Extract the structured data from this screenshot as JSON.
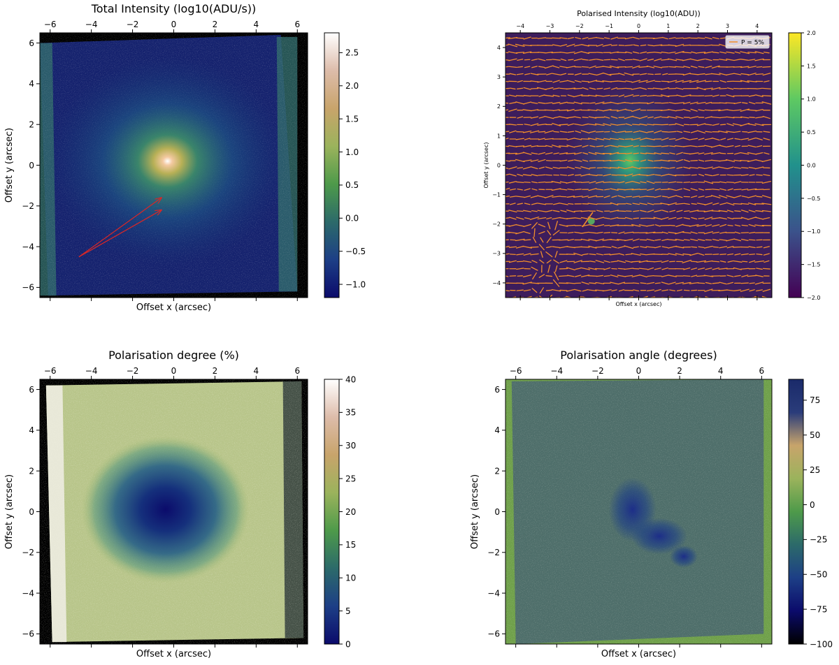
{
  "chart_data": [
    {
      "type": "heatmap",
      "title": "Total Intensity (log10(ADU/s))",
      "xlabel": "Offset x (arcsec)",
      "ylabel": "Offset y (arcsec)",
      "xlim": [
        -6.5,
        6.5
      ],
      "ylim": [
        -6.5,
        6.5
      ],
      "xticks": [
        -6,
        -4,
        -2,
        0,
        2,
        4,
        6
      ],
      "yticks": [
        -6,
        -4,
        -2,
        0,
        2,
        4,
        6
      ],
      "xtick_labels": [
        "−6",
        "−4",
        "−2",
        "0",
        "2",
        "4",
        "6"
      ],
      "ytick_labels": [
        "−6",
        "−4",
        "−2",
        "0",
        "2",
        "4",
        "6"
      ],
      "colorbar": {
        "range": [
          -1.2,
          2.8
        ],
        "ticks": [
          -1.0,
          -0.5,
          0.0,
          0.5,
          1.0,
          1.5,
          2.0,
          2.5
        ],
        "tick_labels": [
          "−1.0",
          "−0.5",
          "0.0",
          "0.5",
          "1.0",
          "1.5",
          "2.0",
          "2.5"
        ],
        "colors": [
          "#0b0b6b",
          "#1d3f86",
          "#2c6a6a",
          "#4e9a4a",
          "#9bb35c",
          "#c8a46b",
          "#ddbcaa",
          "#ffffff"
        ]
      },
      "annotations": [
        {
          "type": "arrow",
          "from": [
            -4.6,
            -4.5
          ],
          "to": [
            -0.6,
            -1.6
          ],
          "color": "#d62728"
        },
        {
          "type": "arrow",
          "from": [
            -4.6,
            -4.5
          ],
          "to": [
            -0.6,
            -2.2
          ],
          "color": "#d62728"
        }
      ]
    },
    {
      "type": "heatmap",
      "title": "Polarised Intensity (log10(ADU))",
      "xlabel": "Offset x (arcsec)",
      "ylabel": "Offset y (arcsec)",
      "xlim": [
        -4.5,
        4.5
      ],
      "ylim": [
        -4.5,
        4.5
      ],
      "xticks": [
        -4,
        -3,
        -2,
        -1,
        0,
        1,
        2,
        3,
        4
      ],
      "yticks": [
        -4,
        -3,
        -2,
        -1,
        0,
        1,
        2,
        3,
        4
      ],
      "xtick_labels": [
        "−4",
        "−3",
        "−2",
        "−1",
        "0",
        "1",
        "2",
        "3",
        "4"
      ],
      "ytick_labels": [
        "−4",
        "−3",
        "−2",
        "−1",
        "0",
        "1",
        "2",
        "3",
        "4"
      ],
      "colorbar": {
        "range": [
          -2.0,
          2.0
        ],
        "ticks": [
          -2.0,
          -1.5,
          -1.0,
          -0.5,
          0.0,
          0.5,
          1.0,
          1.5,
          2.0
        ],
        "tick_labels": [
          "−2.0",
          "−1.5",
          "−1.0",
          "−0.5",
          "0.0",
          "0.5",
          "1.0",
          "1.5",
          "2.0"
        ],
        "colors": [
          "#440154",
          "#3b528b",
          "#21918c",
          "#5ec962",
          "#fde725"
        ]
      },
      "legend": {
        "label": "P = 5%",
        "color": "#f28e2b",
        "position": "top-right"
      },
      "overlay": "polarisation vectors"
    },
    {
      "type": "heatmap",
      "title": "Polarisation degree (%)",
      "xlabel": "Offset x (arcsec)",
      "ylabel": "Offset y (arcsec)",
      "xlim": [
        -6.5,
        6.5
      ],
      "ylim": [
        -6.5,
        6.5
      ],
      "xticks": [
        -6,
        -4,
        -2,
        0,
        2,
        4,
        6
      ],
      "yticks": [
        -6,
        -4,
        -2,
        0,
        2,
        4,
        6
      ],
      "xtick_labels": [
        "−6",
        "−4",
        "−2",
        "0",
        "2",
        "4",
        "6"
      ],
      "ytick_labels": [
        "−6",
        "−4",
        "−2",
        "0",
        "2",
        "4",
        "6"
      ],
      "colorbar": {
        "range": [
          0,
          40
        ],
        "ticks": [
          0,
          5,
          10,
          15,
          20,
          25,
          30,
          35,
          40
        ],
        "tick_labels": [
          "0",
          "5",
          "10",
          "15",
          "20",
          "25",
          "30",
          "35",
          "40"
        ],
        "colors": [
          "#0b0b6b",
          "#1d3f86",
          "#2c6a6a",
          "#4e9a4a",
          "#9bb35c",
          "#c8a46b",
          "#ddbcaa",
          "#ffffff"
        ]
      }
    },
    {
      "type": "heatmap",
      "title": "Polarisation angle (degrees)",
      "xlabel": "Offset x (arcsec)",
      "ylabel": "Offset y (arcsec)",
      "xlim": [
        -6.5,
        6.5
      ],
      "ylim": [
        -6.5,
        6.5
      ],
      "xticks": [
        -6,
        -4,
        -2,
        0,
        2,
        4,
        6
      ],
      "yticks": [
        -6,
        -4,
        -2,
        0,
        2,
        4,
        6
      ],
      "xtick_labels": [
        "−6",
        "−4",
        "−2",
        "0",
        "2",
        "4",
        "6"
      ],
      "ytick_labels": [
        "−6",
        "−4",
        "−2",
        "0",
        "2",
        "4",
        "6"
      ],
      "colorbar": {
        "range": [
          -100,
          90
        ],
        "ticks": [
          -100,
          -75,
          -50,
          -25,
          0,
          25,
          50,
          75
        ],
        "tick_labels": [
          "−100",
          "−75",
          "−50",
          "−25",
          "0",
          "25",
          "50",
          "75"
        ],
        "colors": [
          "#000000",
          "#0b0b6b",
          "#1d3f86",
          "#2c6a6a",
          "#4e9a4a",
          "#9bb35c",
          "#c8a46b",
          "#2a3c7a",
          "#1a2a6a"
        ]
      }
    }
  ]
}
